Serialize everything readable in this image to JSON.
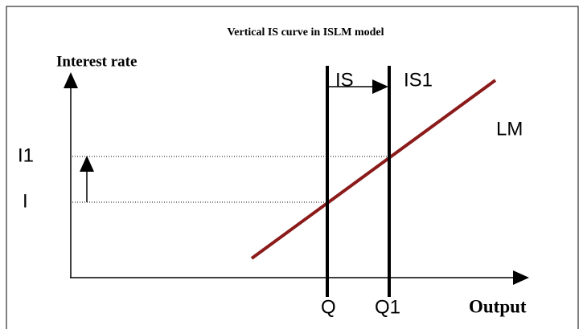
{
  "title": "Vertical IS curve in ISLM model",
  "axes": {
    "y_label": "Interest rate",
    "x_label": "Output"
  },
  "curves": {
    "is": "IS",
    "is1": "IS1",
    "lm": "LM"
  },
  "levels": {
    "i1": "I1",
    "i": "I"
  },
  "outputs": {
    "q": "Q",
    "q1": "Q1"
  }
}
